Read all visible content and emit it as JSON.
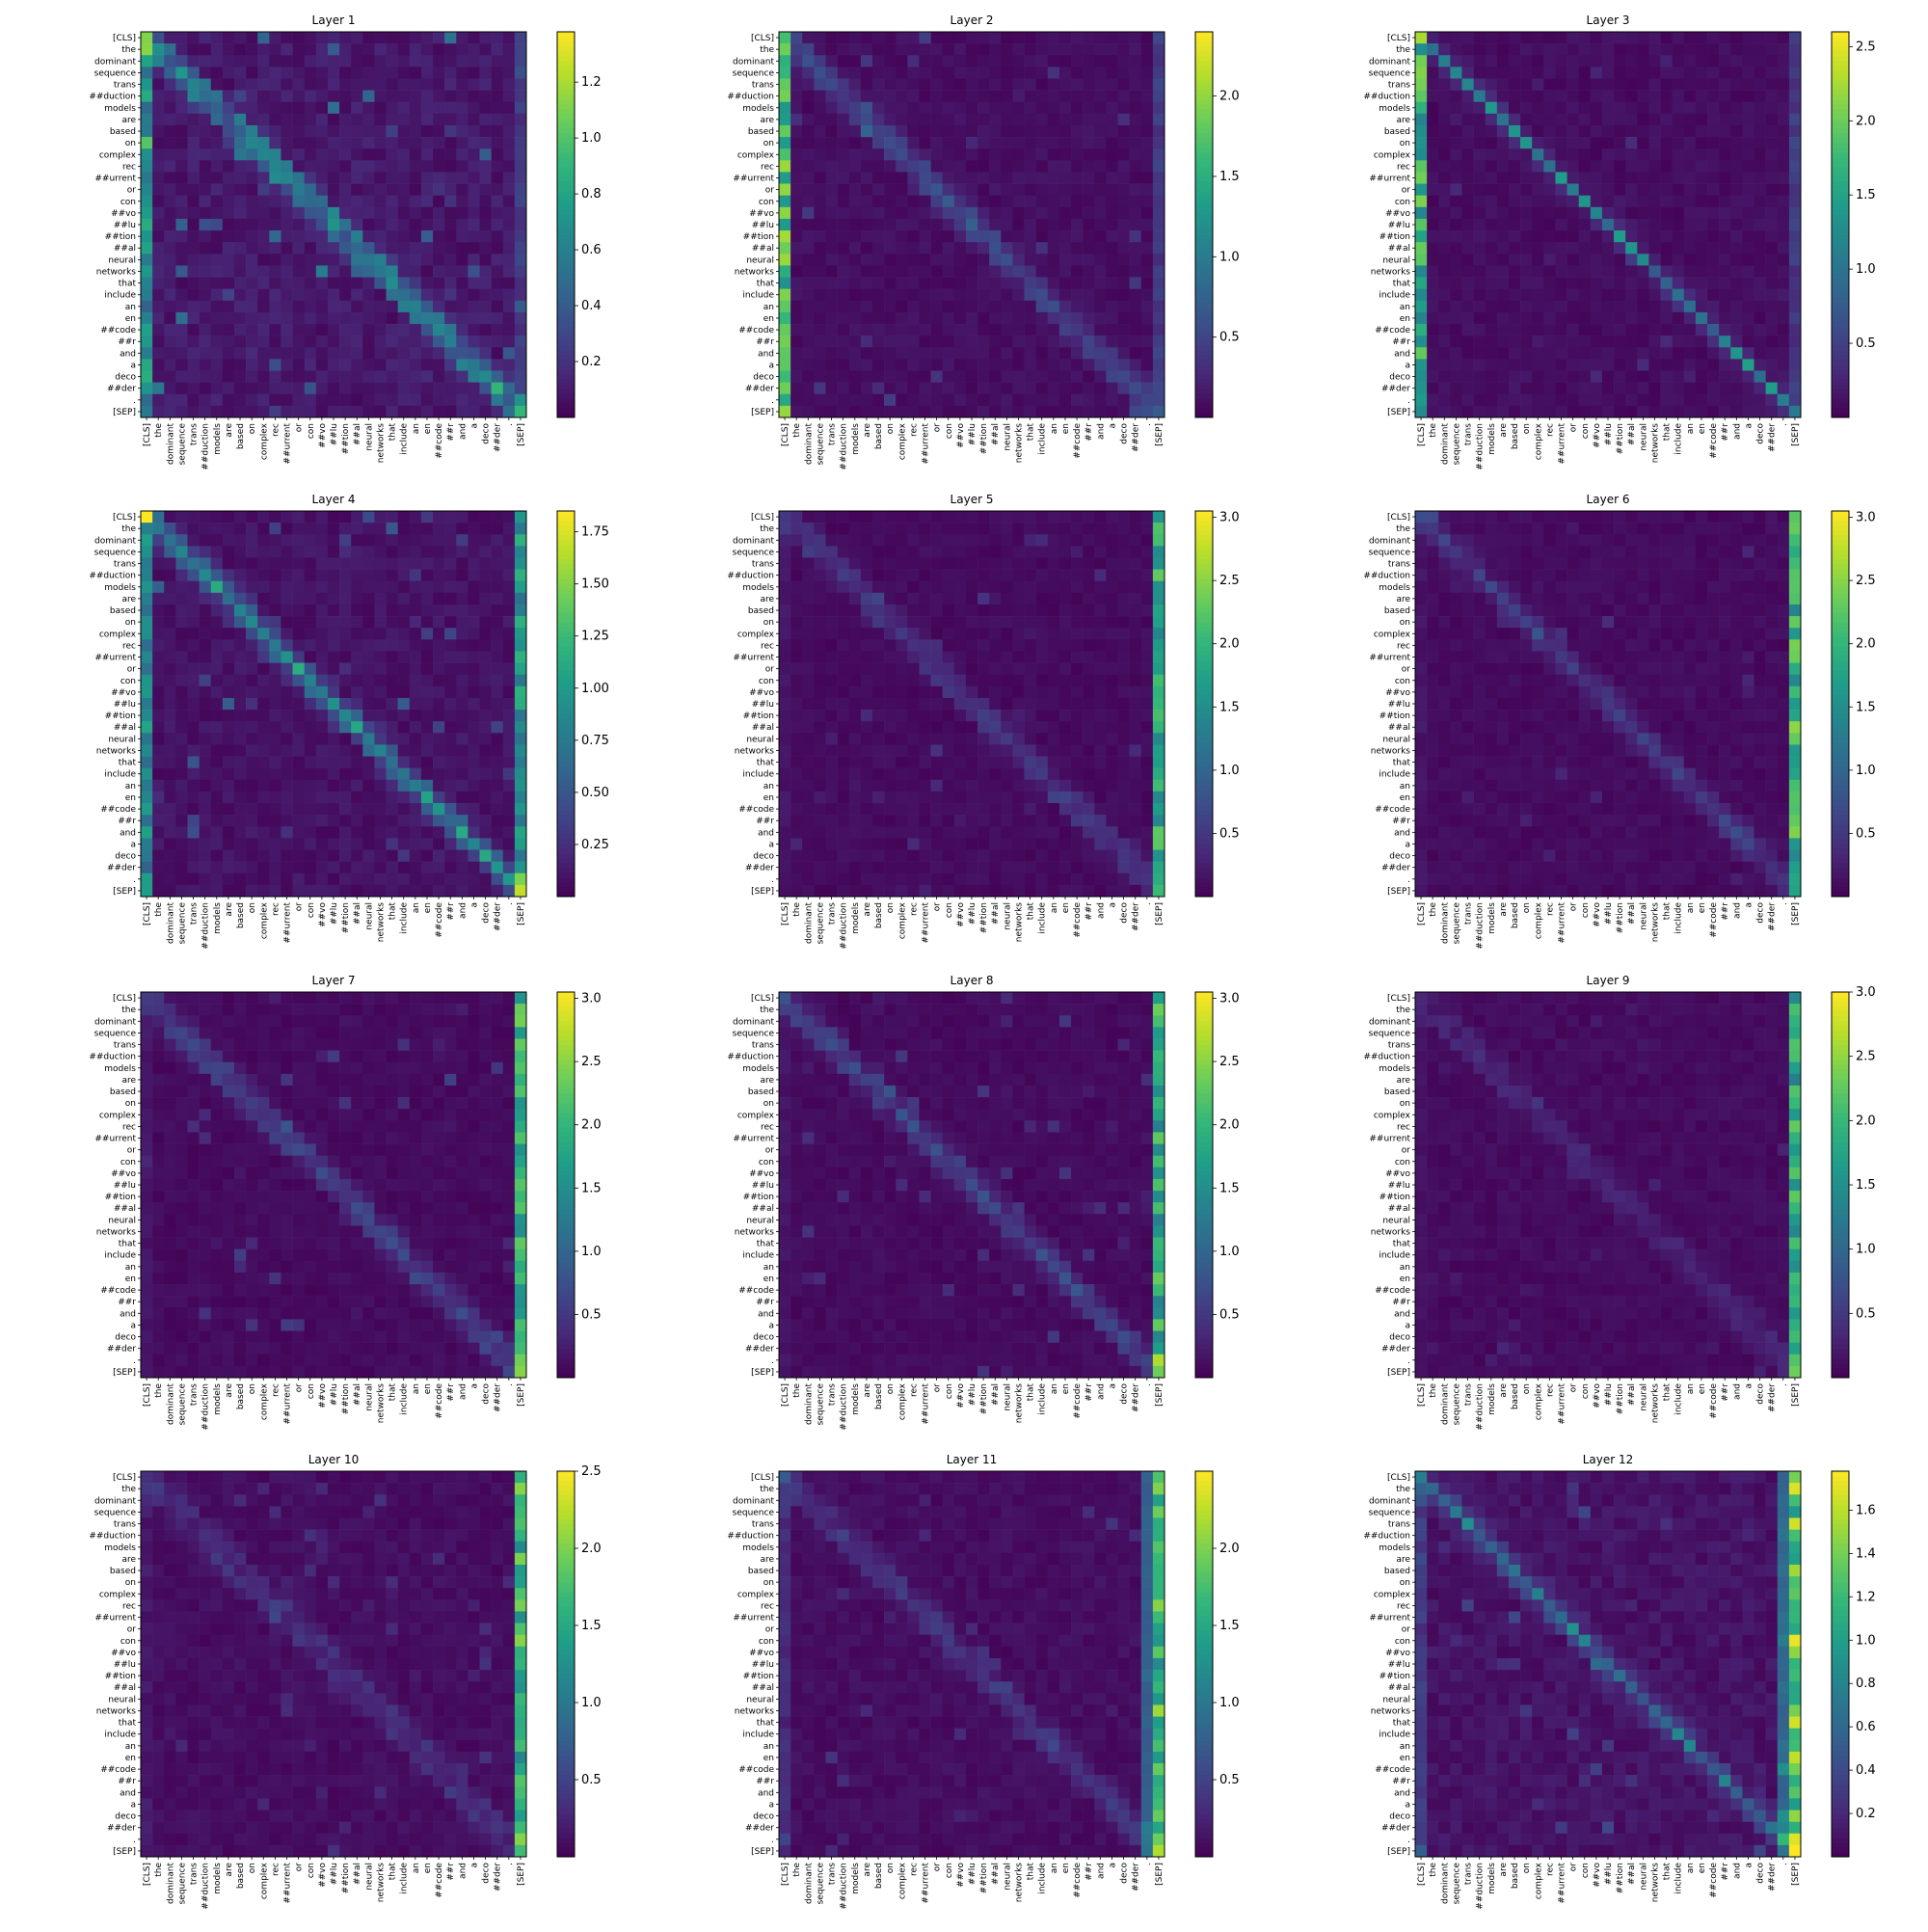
{
  "figure": {
    "tokens": [
      "[CLS]",
      "the",
      "dominant",
      "sequence",
      "trans",
      "##duction",
      "models",
      "are",
      "based",
      "on",
      "complex",
      "rec",
      "##urrent",
      "or",
      "con",
      "##vo",
      "##lu",
      "##tion",
      "##al",
      "neural",
      "networks",
      "that",
      "include",
      "an",
      "en",
      "##code",
      "##r",
      "and",
      "a",
      "deco",
      "##der",
      ".",
      "[SEP]"
    ],
    "colormap": "viridis",
    "colors": {
      "low": "#440154",
      "high": "#fde725"
    }
  },
  "chart_data": [
    {
      "type": "heatmap",
      "title": "Layer 1",
      "vmax": 1.38,
      "colorbar_ticks": [
        "0.2",
        "0.4",
        "0.6",
        "0.8",
        "1.0",
        "1.2"
      ],
      "colorbar_values": [
        0.2,
        0.4,
        0.6,
        0.8,
        1.0,
        1.2
      ],
      "pattern": "diagonal",
      "cls_col": 0.7,
      "sep_col": 0.2,
      "diag": 0.55,
      "near": 0.45
    },
    {
      "type": "heatmap",
      "title": "Layer 2",
      "vmax": 2.4,
      "colorbar_ticks": [
        "0.5",
        "1.0",
        "1.5",
        "2.0"
      ],
      "colorbar_values": [
        0.5,
        1.0,
        1.5,
        2.0
      ],
      "pattern": "cls",
      "cls_col": 1.9,
      "sep_col": 0.35,
      "diag": 0.55,
      "near": 0.35
    },
    {
      "type": "heatmap",
      "title": "Layer 3",
      "vmax": 2.6,
      "colorbar_ticks": [
        "0.5",
        "1.0",
        "1.5",
        "2.0",
        "2.5"
      ],
      "colorbar_values": [
        0.5,
        1.0,
        1.5,
        2.0,
        2.5
      ],
      "pattern": "cls",
      "cls_col": 1.9,
      "sep_col": 0.4,
      "diag": 1.3,
      "near": 0.2
    },
    {
      "type": "heatmap",
      "title": "Layer 4",
      "vmax": 1.85,
      "colorbar_ticks": [
        "0.25",
        "0.50",
        "0.75",
        "1.00",
        "1.25",
        "1.50",
        "1.75"
      ],
      "colorbar_values": [
        0.25,
        0.5,
        0.75,
        1.0,
        1.25,
        1.5,
        1.75
      ],
      "pattern": "both",
      "cls_col": 0.9,
      "sep_col": 1.0,
      "diag": 1.0,
      "near": 0.45
    },
    {
      "type": "heatmap",
      "title": "Layer 5",
      "vmax": 3.05,
      "colorbar_ticks": [
        "0.5",
        "1.0",
        "1.5",
        "2.0",
        "2.5",
        "3.0"
      ],
      "colorbar_values": [
        0.5,
        1.0,
        1.5,
        2.0,
        2.5,
        3.0
      ],
      "pattern": "sep",
      "cls_col": 0.1,
      "sep_col": 2.0,
      "diag": 0.45,
      "near": 0.35
    },
    {
      "type": "heatmap",
      "title": "Layer 6",
      "vmax": 3.05,
      "colorbar_ticks": [
        "0.5",
        "1.0",
        "1.5",
        "2.0",
        "2.5",
        "3.0"
      ],
      "colorbar_values": [
        0.5,
        1.0,
        1.5,
        2.0,
        2.5,
        3.0
      ],
      "pattern": "sep",
      "cls_col": 0.1,
      "sep_col": 2.2,
      "diag": 0.55,
      "near": 0.3
    },
    {
      "type": "heatmap",
      "title": "Layer 7",
      "vmax": 3.05,
      "colorbar_ticks": [
        "0.5",
        "1.0",
        "1.5",
        "2.0",
        "2.5",
        "3.0"
      ],
      "colorbar_values": [
        0.5,
        1.0,
        1.5,
        2.0,
        2.5,
        3.0
      ],
      "pattern": "sep",
      "cls_col": 0.1,
      "sep_col": 2.1,
      "diag": 0.6,
      "near": 0.45
    },
    {
      "type": "heatmap",
      "title": "Layer 8",
      "vmax": 3.05,
      "colorbar_ticks": [
        "0.5",
        "1.0",
        "1.5",
        "2.0",
        "2.5",
        "3.0"
      ],
      "colorbar_values": [
        0.5,
        1.0,
        1.5,
        2.0,
        2.5,
        3.0
      ],
      "pattern": "sep",
      "cls_col": 0.1,
      "sep_col": 2.1,
      "diag": 0.7,
      "near": 0.4
    },
    {
      "type": "heatmap",
      "title": "Layer 9",
      "vmax": 3.0,
      "colorbar_ticks": [
        "0.5",
        "1.0",
        "1.5",
        "2.0",
        "2.5",
        "3.0"
      ],
      "colorbar_values": [
        0.5,
        1.0,
        1.5,
        2.0,
        2.5,
        3.0
      ],
      "pattern": "sep",
      "cls_col": 0.1,
      "sep_col": 2.0,
      "diag": 0.25,
      "near": 0.2
    },
    {
      "type": "heatmap",
      "title": "Layer 10",
      "vmax": 2.5,
      "colorbar_ticks": [
        "0.5",
        "1.0",
        "1.5",
        "2.0",
        "2.5"
      ],
      "colorbar_values": [
        0.5,
        1.0,
        1.5,
        2.0,
        2.5
      ],
      "pattern": "sep",
      "cls_col": 0.1,
      "sep_col": 1.8,
      "diag": 0.2,
      "near": 0.25
    },
    {
      "type": "heatmap",
      "title": "Layer 11",
      "vmax": 2.5,
      "colorbar_ticks": [
        "0.5",
        "1.0",
        "1.5",
        "2.0"
      ],
      "colorbar_values": [
        0.5,
        1.0,
        1.5,
        2.0
      ],
      "pattern": "sep2",
      "cls_col": 0.3,
      "sep_col": 1.9,
      "diag": 0.35,
      "near": 0.25
    },
    {
      "type": "heatmap",
      "title": "Layer 12",
      "vmax": 1.78,
      "colorbar_ticks": [
        "0.2",
        "0.4",
        "0.6",
        "0.8",
        "1.0",
        "1.2",
        "1.4",
        "1.6"
      ],
      "colorbar_values": [
        0.2,
        0.4,
        0.6,
        0.8,
        1.0,
        1.2,
        1.4,
        1.6
      ],
      "pattern": "sep2",
      "cls_col": 0.25,
      "sep_col": 1.45,
      "diag": 0.7,
      "near": 0.25
    }
  ]
}
